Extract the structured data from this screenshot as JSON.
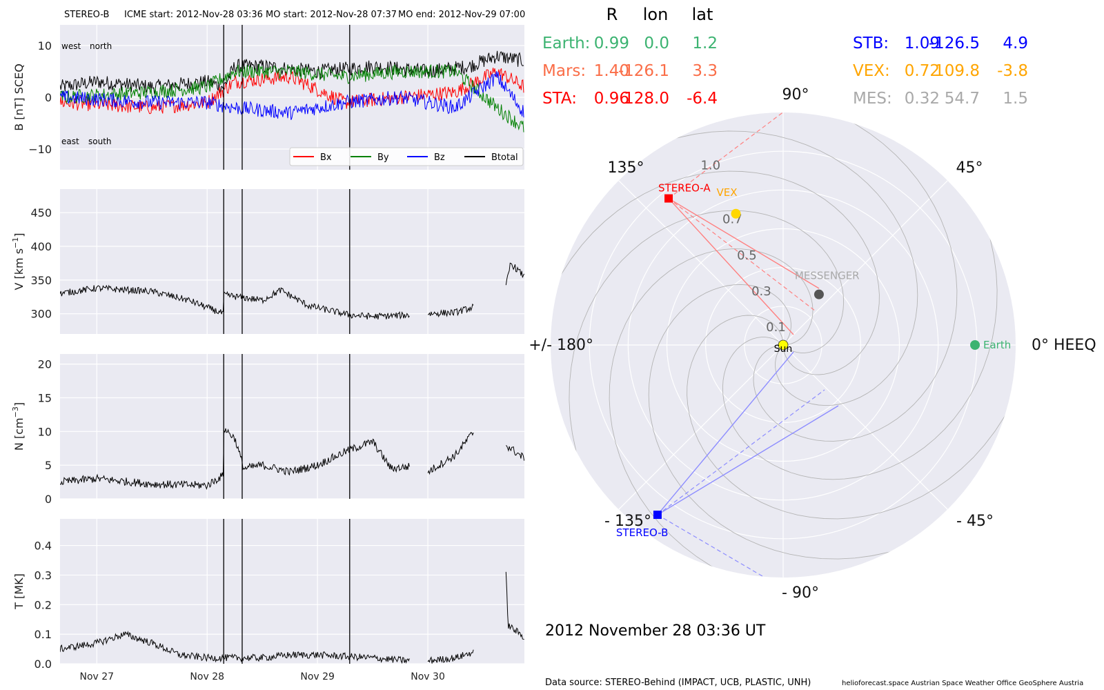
{
  "header": {
    "spacecraft": "STEREO-B",
    "icme_start": "ICME start: 2012-Nov-28 03:36",
    "mo_start": "MO start: 2012-Nov-28 07:37",
    "mo_end": "MO end: 2012-Nov-29 07:00"
  },
  "colors": {
    "panel_bg": "#eaeaf2",
    "bx": "#ff0000",
    "by": "#008000",
    "bz": "#0000ff",
    "btotal": "#000000",
    "earth": "#3cb371",
    "mars": "#fa6d47",
    "sta": "#ff0000",
    "stb": "#0000ff",
    "vex": "#ffa500",
    "mes": "#a9a9a9",
    "sun": "#ffff00"
  },
  "time_axis": {
    "start": "2012-11-26T16:00",
    "end": "2012-11-30T21:00",
    "ticks": [
      {
        "t": "2012-11-27T00:00",
        "label": "Nov 27"
      },
      {
        "t": "2012-11-28T00:00",
        "label": "Nov 28"
      },
      {
        "t": "2012-11-29T00:00",
        "label": "Nov 29"
      },
      {
        "t": "2012-11-30T00:00",
        "label": "Nov 30"
      }
    ],
    "event_lines": [
      "2012-11-28T03:36",
      "2012-11-28T07:37",
      "2012-11-29T07:00"
    ]
  },
  "mag_panel": {
    "ylabel": "B [nT] SCEQ",
    "ylim": [
      -14,
      14
    ],
    "yticks": [
      -10,
      0,
      10
    ],
    "label_top_left": "west",
    "label_top_right": "north",
    "label_bottom_left": "east",
    "label_bottom_right": "south",
    "legend": [
      "Bx",
      "By",
      "Bz",
      "Btotal"
    ]
  },
  "speed_panel": {
    "ylabel": "V [km s",
    "ylabel_sup": "−1",
    "ylabel_end": "]",
    "ylim": [
      270,
      485
    ],
    "yticks": [
      300,
      350,
      400,
      450
    ]
  },
  "density_panel": {
    "ylabel": "N [cm",
    "ylabel_sup": "−3",
    "ylabel_end": "]",
    "ylim": [
      0,
      21.5
    ],
    "yticks": [
      0,
      5,
      10,
      15,
      20
    ]
  },
  "temp_panel": {
    "ylabel": "T [MK]",
    "ylim": [
      0,
      0.49
    ],
    "yticks": [
      0.0,
      0.1,
      0.2,
      0.3,
      0.4
    ]
  },
  "chart_data": [
    {
      "type": "line",
      "title": "B [nT] SCEQ",
      "series": [
        {
          "name": "Btotal",
          "x": [
            "2012-11-26T16:00",
            "2012-11-27T00:00",
            "2012-11-27T12:00",
            "2012-11-28T00:00",
            "2012-11-28T03:36",
            "2012-11-28T06:00",
            "2012-11-28T12:00",
            "2012-11-29T00:00",
            "2012-11-29T12:00",
            "2012-11-30T00:00",
            "2012-11-30T09:00",
            "2012-11-30T15:00",
            "2012-11-30T21:00"
          ],
          "y": [
            2,
            3,
            2,
            3,
            2,
            6,
            6,
            5,
            6,
            5,
            6,
            8,
            7
          ]
        },
        {
          "name": "Bx",
          "x": [
            "2012-11-26T16:00",
            "2012-11-27T12:00",
            "2012-11-28T00:00",
            "2012-11-28T06:00",
            "2012-11-28T18:00",
            "2012-11-29T06:00",
            "2012-11-29T18:00",
            "2012-11-30T06:00",
            "2012-11-30T15:00",
            "2012-11-30T21:00"
          ],
          "y": [
            -1,
            -2,
            -1,
            3,
            4,
            -1,
            0,
            1,
            5,
            2
          ]
        },
        {
          "name": "By",
          "x": [
            "2012-11-26T16:00",
            "2012-11-27T12:00",
            "2012-11-28T00:00",
            "2012-11-28T06:00",
            "2012-11-28T18:00",
            "2012-11-29T06:00",
            "2012-11-29T18:00",
            "2012-11-30T06:00",
            "2012-11-30T15:00",
            "2012-11-30T21:00"
          ],
          "y": [
            0,
            1,
            2,
            5,
            5,
            4,
            5,
            5,
            -2,
            -6
          ]
        },
        {
          "name": "Bz",
          "x": [
            "2012-11-26T16:00",
            "2012-11-27T12:00",
            "2012-11-28T00:00",
            "2012-11-28T06:00",
            "2012-11-28T18:00",
            "2012-11-29T06:00",
            "2012-11-29T18:00",
            "2012-11-30T06:00",
            "2012-11-30T15:00",
            "2012-11-30T21:00"
          ],
          "y": [
            0,
            -1,
            -1,
            -2,
            -3,
            -1,
            0,
            -2,
            4,
            -3
          ]
        }
      ],
      "ylabel": "B [nT] SCEQ",
      "ylim": [
        -14,
        14
      ]
    },
    {
      "type": "line",
      "series": [
        {
          "name": "V",
          "segments": [
            {
              "x": [
                "2012-11-26T16:00",
                "2012-11-27T00:00",
                "2012-11-27T12:00",
                "2012-11-27T20:00",
                "2012-11-28T03:30",
                "2012-11-28T03:36",
                "2012-11-28T12:00",
                "2012-11-28T16:00",
                "2012-11-28T22:00",
                "2012-11-29T07:00",
                "2012-11-29T12:00",
                "2012-11-29T20:00"
              ],
              "y": [
                330,
                338,
                333,
                320,
                300,
                328,
                320,
                335,
                312,
                298,
                296,
                298
              ]
            },
            {
              "x": [
                "2012-11-30T00:00",
                "2012-11-30T06:00",
                "2012-11-30T10:00"
              ],
              "y": [
                300,
                302,
                310
              ]
            },
            {
              "x": [
                "2012-11-30T17:00",
                "2012-11-30T18:00",
                "2012-11-30T21:00"
              ],
              "y": [
                340,
                375,
                355
              ]
            }
          ]
        }
      ],
      "ylabel": "V [km s−1]",
      "ylim": [
        270,
        485
      ]
    },
    {
      "type": "line",
      "series": [
        {
          "name": "N",
          "segments": [
            {
              "x": [
                "2012-11-26T16:00",
                "2012-11-27T00:00",
                "2012-11-27T12:00",
                "2012-11-28T00:00",
                "2012-11-28T03:30",
                "2012-11-28T03:36",
                "2012-11-28T06:00",
                "2012-11-28T08:00",
                "2012-11-28T12:00",
                "2012-11-28T18:00",
                "2012-11-29T00:00",
                "2012-11-29T06:00",
                "2012-11-29T12:00",
                "2012-11-29T16:00",
                "2012-11-29T20:00"
              ],
              "y": [
                2.5,
                3.0,
                2.2,
                2.0,
                3.5,
                10.5,
                9.0,
                4.5,
                5.0,
                4.0,
                5.0,
                7.0,
                8.5,
                4.5,
                4.8
              ]
            },
            {
              "x": [
                "2012-11-30T00:00",
                "2012-11-30T06:00",
                "2012-11-30T10:00"
              ],
              "y": [
                4.0,
                6.5,
                10.0
              ]
            },
            {
              "x": [
                "2012-11-30T17:00",
                "2012-11-30T18:00",
                "2012-11-30T21:00"
              ],
              "y": [
                8.0,
                7.5,
                6.0
              ]
            }
          ]
        }
      ],
      "ylabel": "N [cm−3]",
      "ylim": [
        0,
        21.5
      ]
    },
    {
      "type": "line",
      "series": [
        {
          "name": "T",
          "segments": [
            {
              "x": [
                "2012-11-26T16:00",
                "2012-11-27T00:00",
                "2012-11-27T06:00",
                "2012-11-27T12:00",
                "2012-11-27T18:00",
                "2012-11-28T00:00",
                "2012-11-28T06:00",
                "2012-11-28T12:00",
                "2012-11-28T18:00",
                "2012-11-29T00:00",
                "2012-11-29T12:00",
                "2012-11-29T20:00"
              ],
              "y": [
                0.05,
                0.07,
                0.1,
                0.07,
                0.03,
                0.02,
                0.02,
                0.02,
                0.03,
                0.03,
                0.02,
                0.01
              ]
            },
            {
              "x": [
                "2012-11-30T00:00",
                "2012-11-30T06:00",
                "2012-11-30T10:00"
              ],
              "y": [
                0.01,
                0.02,
                0.04
              ]
            },
            {
              "x": [
                "2012-11-30T17:00",
                "2012-11-30T17:30",
                "2012-11-30T21:00"
              ],
              "y": [
                0.3,
                0.13,
                0.09
              ]
            }
          ]
        }
      ],
      "ylabel": "T [MK]",
      "ylim": [
        0,
        0.49
      ]
    }
  ],
  "position_table": {
    "headers": [
      "R",
      "lon",
      "lat"
    ],
    "rows": [
      {
        "name": "Earth:",
        "r": "0.99",
        "lon": "0.0",
        "lat": "1.2",
        "color": "#3cb371"
      },
      {
        "name": "Mars:",
        "r": "1.40",
        "lon": "-126.1",
        "lat": "3.3",
        "color": "#fa6d47"
      },
      {
        "name": "STA:",
        "r": "0.96",
        "lon": "128.0",
        "lat": "-6.4",
        "color": "#ff0000"
      },
      {
        "name": "STB:",
        "r": "1.09",
        "lon": "-126.5",
        "lat": "4.9",
        "color": "#0000ff"
      },
      {
        "name": "VEX:",
        "r": "0.72",
        "lon": "109.8",
        "lat": "-3.8",
        "color": "#ffa500"
      },
      {
        "name": "MES:",
        "r": "0.32",
        "lon": "54.7",
        "lat": "1.5",
        "color": "#a9a9a9"
      }
    ]
  },
  "polar_plot": {
    "angle_labels": [
      "0° HEEQ",
      "45°",
      "90°",
      "135°",
      "+/- 180°",
      "- 135°",
      "- 90°",
      "- 45°"
    ],
    "radial_labels": [
      "0.1",
      "0.3",
      "0.5",
      "0.7",
      "1.0"
    ],
    "objects": {
      "sun": {
        "label": "Sun"
      },
      "earth": {
        "label": "Earth"
      },
      "stereo_a": {
        "label": "STEREO-A"
      },
      "stereo_b": {
        "label": "STEREO-B"
      },
      "vex": {
        "label": "VEX"
      },
      "messenger": {
        "label": "MESSENGER"
      }
    },
    "date_label": "2012 November 28  03:36 UT"
  },
  "footer": {
    "data_source": "Data source: STEREO-Behind (IMPACT, UCB, PLASTIC, UNH)",
    "credits": "helioforecast.space   Austrian Space Weather Office   GeoSphere Austria"
  }
}
